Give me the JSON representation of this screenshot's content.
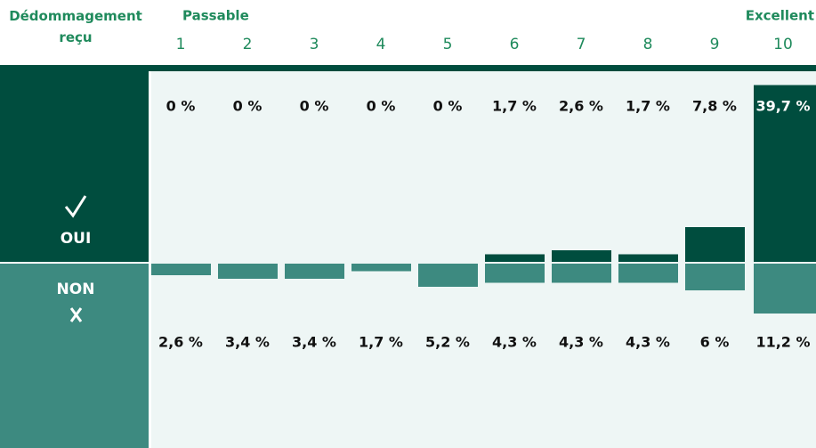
{
  "chart_data": {
    "type": "diverging-bar",
    "header": {
      "title": "Dédommagement reçu",
      "low_label": "Passable",
      "high_label": "Excellent"
    },
    "categories": [
      "1",
      "2",
      "3",
      "4",
      "5",
      "6",
      "7",
      "8",
      "9",
      "10"
    ],
    "series": [
      {
        "name": "OUI",
        "color": "#004d3e",
        "values": [
          0,
          0,
          0,
          0,
          0,
          1.7,
          2.6,
          1.7,
          7.8,
          39.7
        ],
        "value_labels": [
          "0 %",
          "0 %",
          "0 %",
          "0 %",
          "0 %",
          "1,7 %",
          "2,6 %",
          "1,7 %",
          "7,8 %",
          "39,7 %"
        ]
      },
      {
        "name": "NON",
        "color": "#3d8a80",
        "values": [
          2.6,
          3.4,
          3.4,
          1.7,
          5.2,
          4.3,
          4.3,
          4.3,
          6,
          11.2
        ],
        "value_labels": [
          "2,6 %",
          "3,4 %",
          "3,4 %",
          "1,7 %",
          "5,2 %",
          "4,3 %",
          "4,3 %",
          "4,3 %",
          "6 %",
          "11,2 %"
        ]
      }
    ]
  }
}
